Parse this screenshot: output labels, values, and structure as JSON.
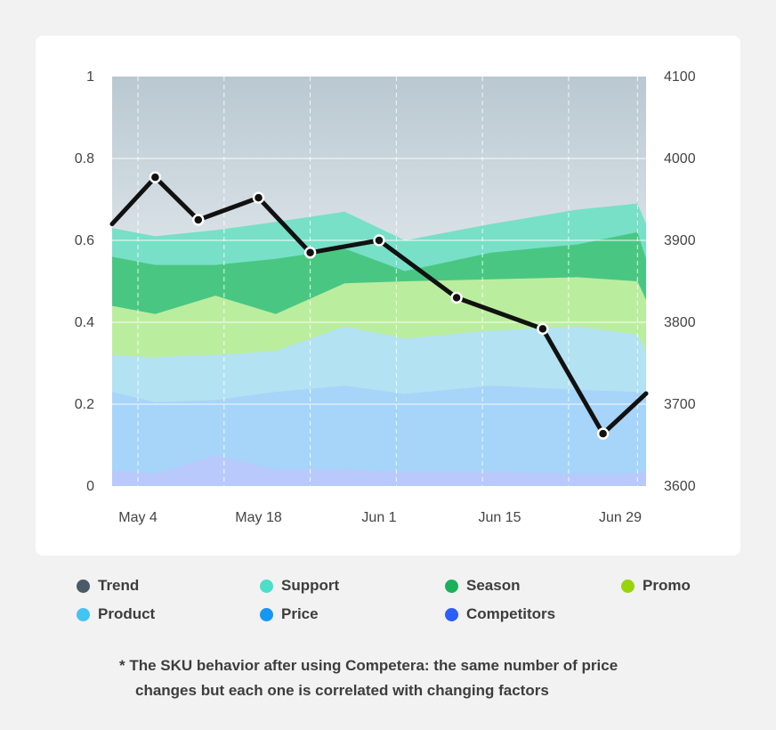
{
  "chart_data": {
    "type": "area",
    "title": "",
    "x_ticks": [
      "May 4",
      "May 18",
      "Jun 1",
      "Jun 15",
      "Jun 29"
    ],
    "x_tick_positions": [
      4,
      18,
      32,
      46,
      60
    ],
    "x_range": [
      1,
      63
    ],
    "ylim_left": [
      0,
      1
    ],
    "y_ticks_left": [
      "0",
      "0.2",
      "0.4",
      "0.6",
      "0.8",
      "1"
    ],
    "ylim_right": [
      3600,
      4100
    ],
    "y_ticks_right": [
      "3600",
      "3700",
      "3800",
      "3900",
      "4000",
      "4100"
    ],
    "stack_x": [
      1,
      6,
      13,
      20,
      28,
      35,
      45,
      55,
      62,
      63
    ],
    "series": [
      {
        "name": "Competitors",
        "color": "#2c5ff6",
        "fill": "#bcc8fb",
        "top": [
          0.04,
          0.03,
          0.075,
          0.04,
          0.04,
          0.035,
          0.035,
          0.03,
          0.03,
          0.04
        ]
      },
      {
        "name": "Price",
        "color": "#1598f4",
        "fill": "#a6d2fa",
        "top": [
          0.23,
          0.205,
          0.21,
          0.23,
          0.245,
          0.225,
          0.245,
          0.235,
          0.23,
          0.225
        ]
      },
      {
        "name": "Product",
        "color": "#44c3f4",
        "fill": "#b2e1f8",
        "top": [
          0.32,
          0.315,
          0.32,
          0.33,
          0.39,
          0.36,
          0.38,
          0.39,
          0.37,
          0.33
        ]
      },
      {
        "name": "Promo",
        "color": "#98d40c",
        "fill": "#c5f0a2",
        "top": [
          0.44,
          0.42,
          0.465,
          0.42,
          0.495,
          0.5,
          0.505,
          0.51,
          0.5,
          0.455
        ]
      },
      {
        "name": "Season",
        "color": "#1db05c",
        "fill": "#45c47c",
        "top": [
          0.56,
          0.54,
          0.54,
          0.555,
          0.58,
          0.525,
          0.57,
          0.59,
          0.62,
          0.555
        ]
      },
      {
        "name": "Support",
        "color": "#4ddec9",
        "fill": "#6fe0c4",
        "top": [
          0.63,
          0.61,
          0.625,
          0.645,
          0.67,
          0.6,
          0.64,
          0.675,
          0.69,
          0.64
        ]
      },
      {
        "name": "Trend",
        "color": "#4a5a66",
        "fill": "#bcc9d0",
        "top": [
          1,
          1,
          1,
          1,
          1,
          1,
          1,
          1,
          1,
          1
        ]
      }
    ],
    "price_line": {
      "axis": "right",
      "points": [
        {
          "x": 1,
          "y": 3920,
          "marker": false
        },
        {
          "x": 6,
          "y": 3977,
          "marker": true
        },
        {
          "x": 11,
          "y": 3925,
          "marker": true
        },
        {
          "x": 18,
          "y": 3952,
          "marker": true
        },
        {
          "x": 24,
          "y": 3885,
          "marker": true
        },
        {
          "x": 32,
          "y": 3900,
          "marker": true
        },
        {
          "x": 41,
          "y": 3830,
          "marker": true
        },
        {
          "x": 51,
          "y": 3792,
          "marker": true
        },
        {
          "x": 58,
          "y": 3664,
          "marker": true
        },
        {
          "x": 63,
          "y": 3713,
          "marker": false
        }
      ]
    }
  },
  "legend": [
    {
      "label": "Trend",
      "color": "#4a5a66"
    },
    {
      "label": "Support",
      "color": "#4ddec9"
    },
    {
      "label": "Season",
      "color": "#1db05c"
    },
    {
      "label": "Promo",
      "color": "#98d40c"
    },
    {
      "label": "Product",
      "color": "#44c3f4"
    },
    {
      "label": "Price",
      "color": "#1598f4"
    },
    {
      "label": "Competitors",
      "color": "#2c5ff6"
    }
  ],
  "footnote": {
    "line1": "* The SKU behavior after using Competera: the same number of price",
    "line2": "changes  but each one is correlated with changing factors"
  }
}
